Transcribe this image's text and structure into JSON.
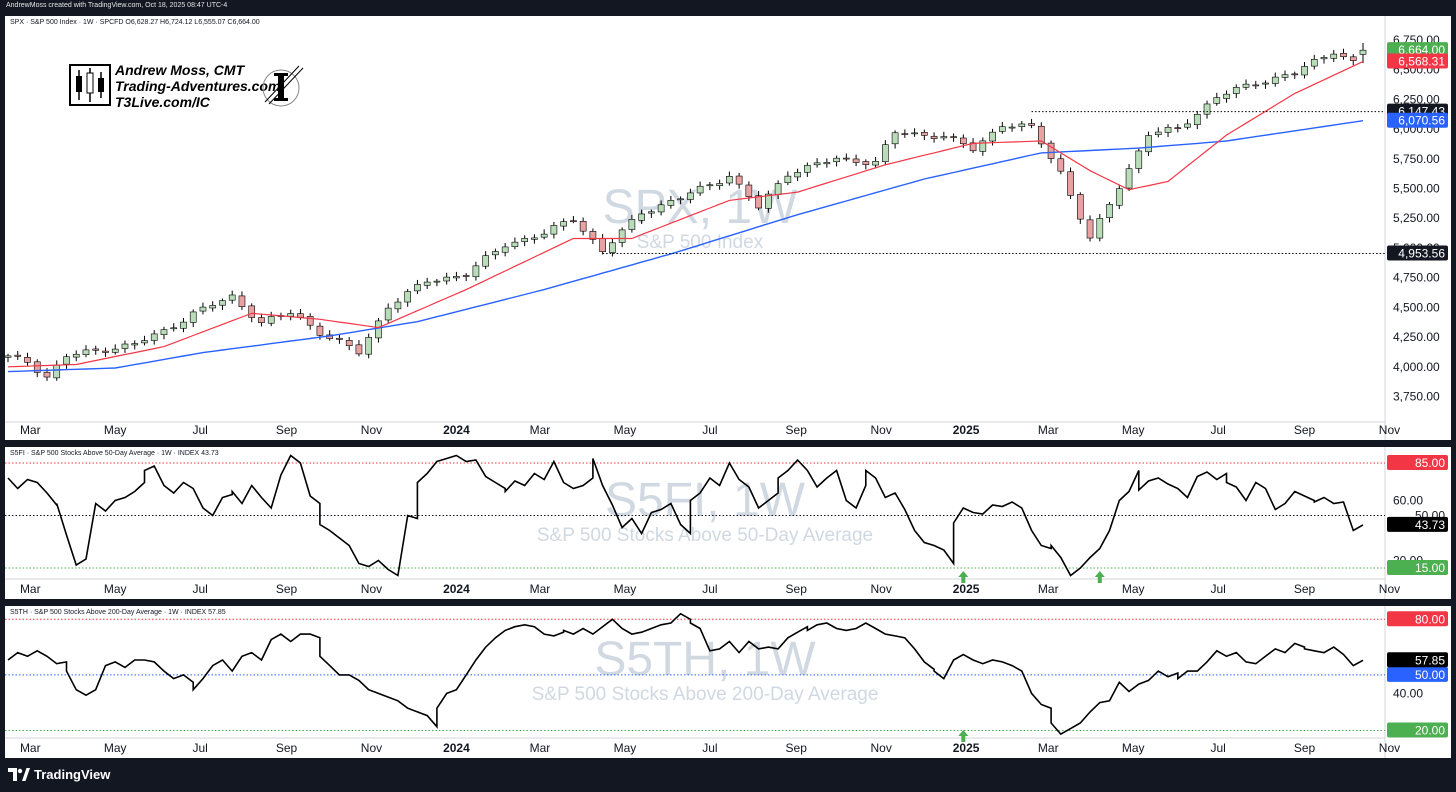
{
  "header": "AndrewMoss created with TradingView.com, Oct 18, 2025 08:47 UTC-4",
  "branding": {
    "author_lines": [
      "Andrew Moss, CMT",
      "Trading-Adventures.com",
      "T3Live.com/IC"
    ],
    "footer_logo": "TradingView",
    "footer_icon": "tradingview-logo-icon",
    "logo_icon": "inner-circle-logo-icon"
  },
  "colors": {
    "up_candle": "#b9ddb9",
    "down_candle": "#e8a2a2",
    "ma_short": "#f23645",
    "ma_long": "#2962ff",
    "indicator_line": "#000000",
    "level_red": "#f23645",
    "level_green": "#4caf50",
    "level_blue": "#2962ff"
  },
  "chart_data": [
    {
      "type": "candlestick",
      "legend": "SPX · S&P 500 Index · 1W · SPCFD  O6,628.27  H6,724.12  L6,555.07  C6,664.00",
      "watermark": {
        "symbol": "SPX, 1W",
        "name": "S&P 500 Index"
      },
      "time_range": [
        "2023-02-13",
        "2025-10-13"
      ],
      "x_tick_labels": [
        {
          "label": "Mar",
          "date": "2023-03-01",
          "bold": false
        },
        {
          "label": "May",
          "date": "2023-05-01",
          "bold": false
        },
        {
          "label": "Jul",
          "date": "2023-07-01",
          "bold": false
        },
        {
          "label": "Sep",
          "date": "2023-09-01",
          "bold": false
        },
        {
          "label": "Nov",
          "date": "2023-11-01",
          "bold": false
        },
        {
          "label": "2024",
          "date": "2024-01-01",
          "bold": true
        },
        {
          "label": "Mar",
          "date": "2024-03-01",
          "bold": false
        },
        {
          "label": "May",
          "date": "2024-05-01",
          "bold": false
        },
        {
          "label": "Jul",
          "date": "2024-07-01",
          "bold": false
        },
        {
          "label": "Sep",
          "date": "2024-09-01",
          "bold": false
        },
        {
          "label": "Nov",
          "date": "2024-11-01",
          "bold": false
        },
        {
          "label": "2025",
          "date": "2025-01-01",
          "bold": true
        },
        {
          "label": "Mar",
          "date": "2025-03-01",
          "bold": false
        },
        {
          "label": "May",
          "date": "2025-05-01",
          "bold": false
        },
        {
          "label": "Jul",
          "date": "2025-07-01",
          "bold": false
        },
        {
          "label": "Sep",
          "date": "2025-09-01",
          "bold": false
        },
        {
          "label": "Nov",
          "date": "2025-11-01",
          "bold": false
        }
      ],
      "ylim": [
        3620,
        6800
      ],
      "y_tick_labels": [
        "3,750.00",
        "4,000.00",
        "4,250.00",
        "4,500.00",
        "4,750.00",
        "5,000.00",
        "5,250.00",
        "5,500.00",
        "5,750.00",
        "6,000.00",
        "6,250.00",
        "6,500.00",
        "6,750.00"
      ],
      "y_tick_values": [
        3750,
        4000,
        4250,
        4500,
        4750,
        5000,
        5250,
        5500,
        5750,
        6000,
        6250,
        6500,
        6750
      ],
      "close_keypoints": [
        [
          "2023-02-13",
          4080
        ],
        [
          "2023-02-27",
          4045
        ],
        [
          "2023-03-13",
          3916
        ],
        [
          "2023-03-27",
          4090
        ],
        [
          "2023-04-17",
          4135
        ],
        [
          "2023-05-15",
          4190
        ],
        [
          "2023-06-05",
          4300
        ],
        [
          "2023-06-26",
          4450
        ],
        [
          "2023-07-24",
          4590
        ],
        [
          "2023-08-14",
          4370
        ],
        [
          "2023-09-05",
          4460
        ],
        [
          "2023-09-25",
          4290
        ],
        [
          "2023-10-23",
          4120
        ],
        [
          "2023-11-13",
          4510
        ],
        [
          "2023-12-11",
          4720
        ],
        [
          "2024-01-08",
          4780
        ],
        [
          "2024-02-05",
          5030
        ],
        [
          "2024-03-04",
          5120
        ],
        [
          "2024-03-25",
          5250
        ],
        [
          "2024-04-15",
          4970
        ],
        [
          "2024-05-13",
          5300
        ],
        [
          "2024-06-10",
          5420
        ],
        [
          "2024-07-15",
          5610
        ],
        [
          "2024-08-05",
          5340
        ],
        [
          "2024-08-26",
          5630
        ],
        [
          "2024-09-30",
          5750
        ],
        [
          "2024-10-28",
          5720
        ],
        [
          "2024-11-11",
          5970
        ],
        [
          "2024-12-16",
          5940
        ],
        [
          "2025-01-06",
          5830
        ],
        [
          "2025-01-27",
          6040
        ],
        [
          "2025-02-17",
          6010
        ],
        [
          "2025-03-10",
          5640
        ],
        [
          "2025-03-31",
          5070
        ],
        [
          "2025-04-21",
          5520
        ],
        [
          "2025-05-12",
          5960
        ],
        [
          "2025-06-02",
          6000
        ],
        [
          "2025-06-30",
          6270
        ],
        [
          "2025-07-28",
          6390
        ],
        [
          "2025-08-25",
          6470
        ],
        [
          "2025-09-22",
          6660
        ],
        [
          "2025-10-06",
          6560
        ],
        [
          "2025-10-13",
          6664
        ]
      ],
      "ma20_keypoints": [
        [
          "2023-02-13",
          4000
        ],
        [
          "2023-04-03",
          4020
        ],
        [
          "2023-06-05",
          4170
        ],
        [
          "2023-08-07",
          4450
        ],
        [
          "2023-09-25",
          4400
        ],
        [
          "2023-11-06",
          4330
        ],
        [
          "2024-01-08",
          4650
        ],
        [
          "2024-03-25",
          5080
        ],
        [
          "2024-05-06",
          5080
        ],
        [
          "2024-07-15",
          5400
        ],
        [
          "2024-09-02",
          5470
        ],
        [
          "2024-11-04",
          5700
        ],
        [
          "2025-01-06",
          5880
        ],
        [
          "2025-02-24",
          5900
        ],
        [
          "2025-03-31",
          5650
        ],
        [
          "2025-04-28",
          5490
        ],
        [
          "2025-05-26",
          5560
        ],
        [
          "2025-07-07",
          5950
        ],
        [
          "2025-08-25",
          6300
        ],
        [
          "2025-10-13",
          6568.31
        ]
      ],
      "ma50_keypoints": [
        [
          "2023-02-13",
          3960
        ],
        [
          "2023-05-01",
          3990
        ],
        [
          "2023-07-03",
          4120
        ],
        [
          "2023-10-02",
          4260
        ],
        [
          "2023-12-04",
          4380
        ],
        [
          "2024-03-04",
          4650
        ],
        [
          "2024-06-03",
          4950
        ],
        [
          "2024-09-02",
          5280
        ],
        [
          "2024-12-02",
          5580
        ],
        [
          "2025-02-24",
          5800
        ],
        [
          "2025-05-05",
          5840
        ],
        [
          "2025-07-07",
          5900
        ],
        [
          "2025-10-13",
          6070.56
        ]
      ],
      "ohlc_sample": {
        "open": 6628.27,
        "high": 6724.12,
        "low": 6555.07,
        "close": 6664.0
      },
      "horizontal_levels": [
        {
          "value": 6147.43,
          "label": "6,147.43",
          "start": "2025-02-17"
        },
        {
          "value": 4953.56,
          "label": "4,953.56",
          "start": "2024-04-15"
        }
      ],
      "price_tags": [
        {
          "value": 6664.0,
          "label": "6,664.00",
          "color": "#4caf50"
        },
        {
          "value": 6568.31,
          "label": "6,568.31",
          "color": "#f23645"
        },
        {
          "value": 6147.43,
          "label": "6,147.43",
          "color": "#131722"
        },
        {
          "value": 6070.56,
          "label": "6,070.56",
          "color": "#2962ff"
        },
        {
          "value": 4953.56,
          "label": "4,953.56",
          "color": "#131722"
        }
      ]
    },
    {
      "type": "line",
      "legend": "S5FI · S&P 500 Stocks Above 50-Day Average · 1W · INDEX  43.73",
      "watermark": {
        "symbol": "S5FI, 1W",
        "name": "S&P 500 Stocks Above 50-Day Average"
      },
      "ylim": [
        9,
        93
      ],
      "y_tick_labels": [
        "20.00",
        "60.00"
      ],
      "y_tick_values": [
        20,
        60
      ],
      "series": [
        {
          "name": "S5FI",
          "values": [
            75,
            68,
            74,
            72,
            65,
            57,
            58,
            37,
            17,
            21,
            58,
            53,
            60,
            62,
            66,
            72,
            80,
            83,
            70,
            65,
            72,
            68,
            55,
            50,
            62,
            64,
            66,
            58,
            70,
            62,
            55,
            77,
            90,
            85,
            63,
            58,
            44,
            40,
            35,
            30,
            18,
            16,
            20,
            14,
            10,
            50,
            48,
            72,
            78,
            86,
            88,
            90,
            86,
            87,
            76,
            72,
            68,
            66,
            73,
            70,
            78,
            74,
            86,
            72,
            68,
            70,
            75,
            88,
            70,
            57,
            42,
            48,
            38,
            52,
            54,
            58,
            44,
            38,
            60,
            65,
            75,
            70,
            85,
            74,
            69,
            55,
            60,
            65,
            75,
            80,
            87,
            80,
            69,
            75,
            80,
            60,
            55,
            70,
            80,
            75,
            62,
            65,
            54,
            40,
            32,
            30,
            27,
            18,
            45,
            55,
            52,
            51,
            57,
            56,
            59,
            55,
            40,
            30,
            28,
            30,
            22,
            10,
            15,
            22,
            28,
            40,
            60,
            66,
            80,
            67,
            73,
            75,
            71,
            68,
            62,
            76,
            79,
            74,
            78,
            72,
            69,
            60,
            72,
            68,
            54,
            58,
            66,
            63,
            60,
            59,
            62,
            58,
            59,
            40,
            43.73
          ]
        }
      ],
      "levels": [
        {
          "value": 85,
          "label": "85.00",
          "color": "#f23645"
        },
        {
          "value": 50,
          "label": "50.00",
          "color": "#131722"
        },
        {
          "value": 15,
          "label": "15.00",
          "color": "#4caf50"
        }
      ],
      "last": {
        "value": 43.73,
        "label": "43.73"
      },
      "arrows": [
        {
          "date": "2024-12-30"
        },
        {
          "date": "2025-04-07"
        }
      ]
    },
    {
      "type": "line",
      "legend": "S5TH · S&P 500 Stocks Above 200-Day Average · 1W · INDEX  57.85",
      "watermark": {
        "symbol": "S5TH, 1W",
        "name": "S&P 500 Stocks Above 200-Day Average"
      },
      "ylim": [
        17,
        85
      ],
      "y_tick_labels": [
        "40.00"
      ],
      "y_tick_values": [
        40
      ],
      "series": [
        {
          "name": "S5TH",
          "values": [
            58,
            62,
            60,
            63,
            60,
            56,
            57,
            52,
            42,
            39,
            42,
            55,
            57,
            54,
            58,
            58,
            57,
            52,
            48,
            50,
            46,
            42,
            48,
            55,
            58,
            52,
            60,
            62,
            58,
            69,
            72,
            68,
            72,
            72,
            70,
            60,
            55,
            50,
            50,
            47,
            42,
            40,
            38,
            36,
            32,
            30,
            28,
            22,
            32,
            40,
            42,
            50,
            58,
            65,
            70,
            74,
            76,
            77,
            76,
            72,
            71,
            73,
            74,
            72,
            75,
            72,
            76,
            80,
            75,
            72,
            73,
            75,
            77,
            78,
            83,
            80,
            78,
            75,
            63,
            64,
            68,
            62,
            68,
            64,
            65,
            64,
            70,
            73,
            76,
            74,
            77,
            78,
            75,
            74,
            75,
            78,
            75,
            72,
            71,
            70,
            64,
            57,
            53,
            52,
            48,
            58,
            61,
            58,
            56,
            58,
            57,
            55,
            52,
            40,
            34,
            32,
            24,
            18,
            21,
            24,
            30,
            35,
            36,
            46,
            41,
            45,
            47,
            52,
            49,
            51,
            48,
            52,
            52,
            57,
            63,
            60,
            62,
            57,
            56,
            60,
            64,
            62,
            67,
            65,
            64,
            63,
            62,
            65,
            61,
            55,
            57.85
          ]
        }
      ],
      "levels": [
        {
          "value": 80,
          "label": "80.00",
          "color": "#f23645"
        },
        {
          "value": 50,
          "label": "50.00",
          "color": "#2962ff"
        },
        {
          "value": 20,
          "label": "20.00",
          "color": "#4caf50"
        }
      ],
      "last": {
        "value": 57.85,
        "label": "57.85"
      },
      "arrows": [
        {
          "date": "2024-12-30"
        }
      ]
    }
  ]
}
